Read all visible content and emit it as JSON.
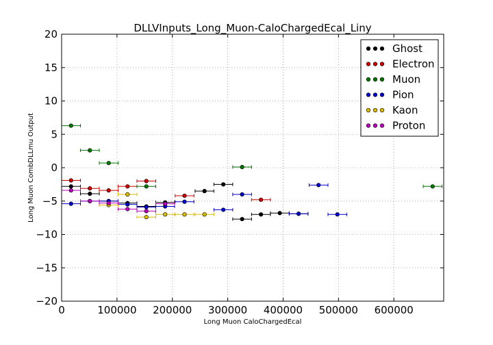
{
  "chart_data": {
    "type": "scatter",
    "title": "DLLVInputs_Long_Muon-CaloChargedEcal_Liny",
    "xlabel": "Long Muon CaloChargedEcal",
    "ylabel": "Long Muon CombDLLmu Output",
    "xlim": [
      0,
      690000
    ],
    "ylim": [
      -20,
      20
    ],
    "x_ticks": [
      0,
      100000,
      200000,
      300000,
      400000,
      500000,
      600000
    ],
    "y_ticks": [
      -20,
      -15,
      -10,
      -5,
      0,
      5,
      10,
      15,
      20
    ],
    "x_tick_labels": [
      "0",
      "100000",
      "200000",
      "300000",
      "400000",
      "500000",
      "600000"
    ],
    "y_tick_labels": [
      "−20",
      "−15",
      "−10",
      "−5",
      "0",
      "5",
      "10",
      "15",
      "20"
    ],
    "grid": true,
    "legend_position": "top-right",
    "error_bars": "x",
    "series": [
      {
        "name": "Ghost",
        "color": "#000000",
        "points": [
          {
            "x": 17000,
            "y": -2.8,
            "xerr": 17000
          },
          {
            "x": 51000,
            "y": -3.9,
            "xerr": 17000
          },
          {
            "x": 85000,
            "y": -5.0,
            "xerr": 17000
          },
          {
            "x": 119000,
            "y": -5.3,
            "xerr": 17000
          },
          {
            "x": 153000,
            "y": -5.8,
            "xerr": 17000
          },
          {
            "x": 187000,
            "y": -5.2,
            "xerr": 17000
          },
          {
            "x": 258000,
            "y": -3.5,
            "xerr": 17000
          },
          {
            "x": 292000,
            "y": -2.5,
            "xerr": 17000
          },
          {
            "x": 326000,
            "y": -7.7,
            "xerr": 17000
          },
          {
            "x": 360000,
            "y": -7.0,
            "xerr": 17000
          },
          {
            "x": 394000,
            "y": -6.8,
            "xerr": 17000
          },
          {
            "x": 428000,
            "y": -6.9,
            "xerr": 17000
          }
        ]
      },
      {
        "name": "Electron",
        "color": "#cc0000",
        "points": [
          {
            "x": 17000,
            "y": -1.9,
            "xerr": 17000
          },
          {
            "x": 51000,
            "y": -3.1,
            "xerr": 17000
          },
          {
            "x": 85000,
            "y": -3.4,
            "xerr": 17000
          },
          {
            "x": 119000,
            "y": -2.8,
            "xerr": 17000
          },
          {
            "x": 153000,
            "y": -2.0,
            "xerr": 17000
          },
          {
            "x": 222000,
            "y": -4.2,
            "xerr": 17000
          },
          {
            "x": 360000,
            "y": -4.8,
            "xerr": 17000
          }
        ]
      },
      {
        "name": "Muon",
        "color": "#007700",
        "points": [
          {
            "x": 17000,
            "y": 6.3,
            "xerr": 17000
          },
          {
            "x": 51000,
            "y": 2.6,
            "xerr": 17000
          },
          {
            "x": 85000,
            "y": 0.7,
            "xerr": 17000
          },
          {
            "x": 153000,
            "y": -2.8,
            "xerr": 17000
          },
          {
            "x": 326000,
            "y": 0.1,
            "xerr": 17000
          },
          {
            "x": 670000,
            "y": -2.8,
            "xerr": 17000
          }
        ]
      },
      {
        "name": "Pion",
        "color": "#0000cc",
        "points": [
          {
            "x": 17000,
            "y": -5.4,
            "xerr": 17000
          },
          {
            "x": 51000,
            "y": -5.0,
            "xerr": 17000
          },
          {
            "x": 85000,
            "y": -5.0,
            "xerr": 17000
          },
          {
            "x": 119000,
            "y": -5.5,
            "xerr": 17000
          },
          {
            "x": 153000,
            "y": -5.9,
            "xerr": 17000
          },
          {
            "x": 187000,
            "y": -5.8,
            "xerr": 17000
          },
          {
            "x": 222000,
            "y": -5.1,
            "xerr": 17000
          },
          {
            "x": 292000,
            "y": -6.3,
            "xerr": 17000
          },
          {
            "x": 326000,
            "y": -4.0,
            "xerr": 17000
          },
          {
            "x": 428000,
            "y": -6.9,
            "xerr": 17000
          },
          {
            "x": 464000,
            "y": -2.6,
            "xerr": 17000
          },
          {
            "x": 498000,
            "y": -7.0,
            "xerr": 17000
          }
        ]
      },
      {
        "name": "Kaon",
        "color": "#ddbb00",
        "points": [
          {
            "x": 85000,
            "y": -5.6,
            "xerr": 17000
          },
          {
            "x": 119000,
            "y": -4.0,
            "xerr": 17000
          },
          {
            "x": 153000,
            "y": -7.4,
            "xerr": 17000
          },
          {
            "x": 187000,
            "y": -7.0,
            "xerr": 17000
          },
          {
            "x": 222000,
            "y": -7.0,
            "xerr": 17000
          },
          {
            "x": 258000,
            "y": -7.0,
            "xerr": 17000
          }
        ]
      },
      {
        "name": "Proton",
        "color": "#bb00bb",
        "points": [
          {
            "x": 17000,
            "y": -3.4,
            "xerr": 17000
          },
          {
            "x": 51000,
            "y": -5.0,
            "xerr": 17000
          },
          {
            "x": 85000,
            "y": -5.3,
            "xerr": 17000
          },
          {
            "x": 119000,
            "y": -6.2,
            "xerr": 17000
          },
          {
            "x": 153000,
            "y": -6.5,
            "xerr": 17000
          },
          {
            "x": 187000,
            "y": -5.4,
            "xerr": 17000
          }
        ]
      }
    ]
  }
}
